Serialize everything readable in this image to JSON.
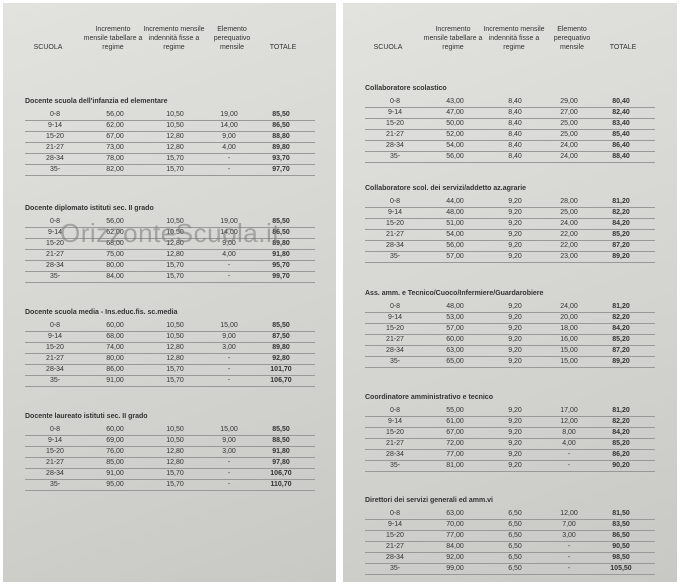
{
  "left": {
    "header": [
      "SCUOLA",
      "Incremento mensile tabellare a regime",
      "Incremento mensile indennità fisse a regime",
      "Elemento perequativo mensile",
      "TOTALE"
    ],
    "sections": [
      {
        "title": "Docente scuola dell'infanzia ed elementare",
        "rows": [
          [
            "0-8",
            "56,00",
            "10,50",
            "19,00",
            "85,50"
          ],
          [
            "9-14",
            "62,00",
            "10,50",
            "14,00",
            "86,50"
          ],
          [
            "15-20",
            "67,00",
            "12,80",
            "9,00",
            "88,80"
          ],
          [
            "21-27",
            "73,00",
            "12,80",
            "4,00",
            "89,80"
          ],
          [
            "28-34",
            "78,00",
            "15,70",
            "-",
            "93,70"
          ],
          [
            "35-",
            "82,00",
            "15,70",
            "-",
            "97,70"
          ]
        ]
      },
      {
        "title": "Docente diplomato istituti sec. II grado",
        "rows": [
          [
            "0-8",
            "56,00",
            "10,50",
            "19,00",
            "85,50"
          ],
          [
            "9-14",
            "62,00",
            "10,50",
            "14,00",
            "86,50"
          ],
          [
            "15-20",
            "68,00",
            "12,80",
            "9,00",
            "89,80"
          ],
          [
            "21-27",
            "75,00",
            "12,80",
            "4,00",
            "91,80"
          ],
          [
            "28-34",
            "80,00",
            "15,70",
            "-",
            "95,70"
          ],
          [
            "35-",
            "84,00",
            "15,70",
            "-",
            "99,70"
          ]
        ]
      },
      {
        "title": "Docente scuola media - Ins.educ.fis. sc.media",
        "rows": [
          [
            "0-8",
            "60,00",
            "10,50",
            "15,00",
            "85,50"
          ],
          [
            "9-14",
            "68,00",
            "10,50",
            "9,00",
            "87,50"
          ],
          [
            "15-20",
            "74,00",
            "12,80",
            "3,00",
            "89,80"
          ],
          [
            "21-27",
            "80,00",
            "12,80",
            "-",
            "92,80"
          ],
          [
            "28-34",
            "86,00",
            "15,70",
            "-",
            "101,70"
          ],
          [
            "35-",
            "91,00",
            "15,70",
            "-",
            "106,70"
          ]
        ]
      },
      {
        "title": "Docente laureato istituti sec. II grado",
        "rows": [
          [
            "0-8",
            "60,00",
            "10,50",
            "15,00",
            "85,50"
          ],
          [
            "9-14",
            "69,00",
            "10,50",
            "9,00",
            "88,50"
          ],
          [
            "15-20",
            "76,00",
            "12,80",
            "3,00",
            "91,80"
          ],
          [
            "21-27",
            "85,00",
            "12,80",
            "-",
            "97,80"
          ],
          [
            "28-34",
            "91,00",
            "15,70",
            "-",
            "106,70"
          ],
          [
            "35-",
            "95,00",
            "15,70",
            "-",
            "110,70"
          ]
        ]
      }
    ]
  },
  "right": {
    "header": [
      "SCUOLA",
      "Incremento mensile tabellare a regime",
      "Incremento mensile indennità fisse a regime",
      "Elemento perequativo mensile",
      "TOTALE"
    ],
    "sections": [
      {
        "title": "Collaboratore scolastico",
        "rows": [
          [
            "0-8",
            "43,00",
            "8,40",
            "29,00",
            "80,40"
          ],
          [
            "9-14",
            "47,00",
            "8,40",
            "27,00",
            "82,40"
          ],
          [
            "15-20",
            "50,00",
            "8,40",
            "25,00",
            "83,40"
          ],
          [
            "21-27",
            "52,00",
            "8,40",
            "25,00",
            "85,40"
          ],
          [
            "28-34",
            "54,00",
            "8,40",
            "24,00",
            "86,40"
          ],
          [
            "35-",
            "56,00",
            "8,40",
            "24,00",
            "88,40"
          ]
        ]
      },
      {
        "title": "Collaboratore scol. dei servizi/addetto az.agrarie",
        "rows": [
          [
            "0-8",
            "44,00",
            "9,20",
            "28,00",
            "81,20"
          ],
          [
            "9-14",
            "48,00",
            "9,20",
            "25,00",
            "82,20"
          ],
          [
            "15-20",
            "51,00",
            "9,20",
            "24,00",
            "84,20"
          ],
          [
            "21-27",
            "54,00",
            "9,20",
            "22,00",
            "85,20"
          ],
          [
            "28-34",
            "56,00",
            "9,20",
            "22,00",
            "87,20"
          ],
          [
            "35-",
            "57,00",
            "9,20",
            "23,00",
            "89,20"
          ]
        ]
      },
      {
        "title": "Ass. amm. e Tecnico/Cuoco/Infermiere/Guardarobiere",
        "rows": [
          [
            "0-8",
            "48,00",
            "9,20",
            "24,00",
            "81,20"
          ],
          [
            "9-14",
            "53,00",
            "9,20",
            "20,00",
            "82,20"
          ],
          [
            "15-20",
            "57,00",
            "9,20",
            "18,00",
            "84,20"
          ],
          [
            "21-27",
            "60,00",
            "9,20",
            "16,00",
            "85,20"
          ],
          [
            "28-34",
            "63,00",
            "9,20",
            "15,00",
            "87,20"
          ],
          [
            "35-",
            "65,00",
            "9,20",
            "15,00",
            "89,20"
          ]
        ]
      },
      {
        "title": "Coordinatore amministrativo e tecnico",
        "rows": [
          [
            "0-8",
            "55,00",
            "9,20",
            "17,00",
            "81,20"
          ],
          [
            "9-14",
            "61,00",
            "9,20",
            "12,00",
            "82,20"
          ],
          [
            "15-20",
            "67,00",
            "9,20",
            "8,00",
            "84,20"
          ],
          [
            "21-27",
            "72,00",
            "9,20",
            "4,00",
            "85,20"
          ],
          [
            "28-34",
            "77,00",
            "9,20",
            "-",
            "86,20"
          ],
          [
            "35-",
            "81,00",
            "9,20",
            "-",
            "90,20"
          ]
        ]
      },
      {
        "title": "Direttori dei servizi generali ed amm.vi",
        "rows": [
          [
            "0-8",
            "63,00",
            "6,50",
            "12,00",
            "81,50"
          ],
          [
            "9-14",
            "70,00",
            "6,50",
            "7,00",
            "83,50"
          ],
          [
            "15-20",
            "77,00",
            "6,50",
            "3,00",
            "86,50"
          ],
          [
            "21-27",
            "84,00",
            "6,50",
            "-",
            "90,50"
          ],
          [
            "28-34",
            "92,00",
            "6,50",
            "-",
            "98,50"
          ],
          [
            "35-",
            "99,00",
            "6,50",
            "-",
            "105,50"
          ]
        ]
      }
    ]
  },
  "watermark": "OrizzonteScuola.it"
}
